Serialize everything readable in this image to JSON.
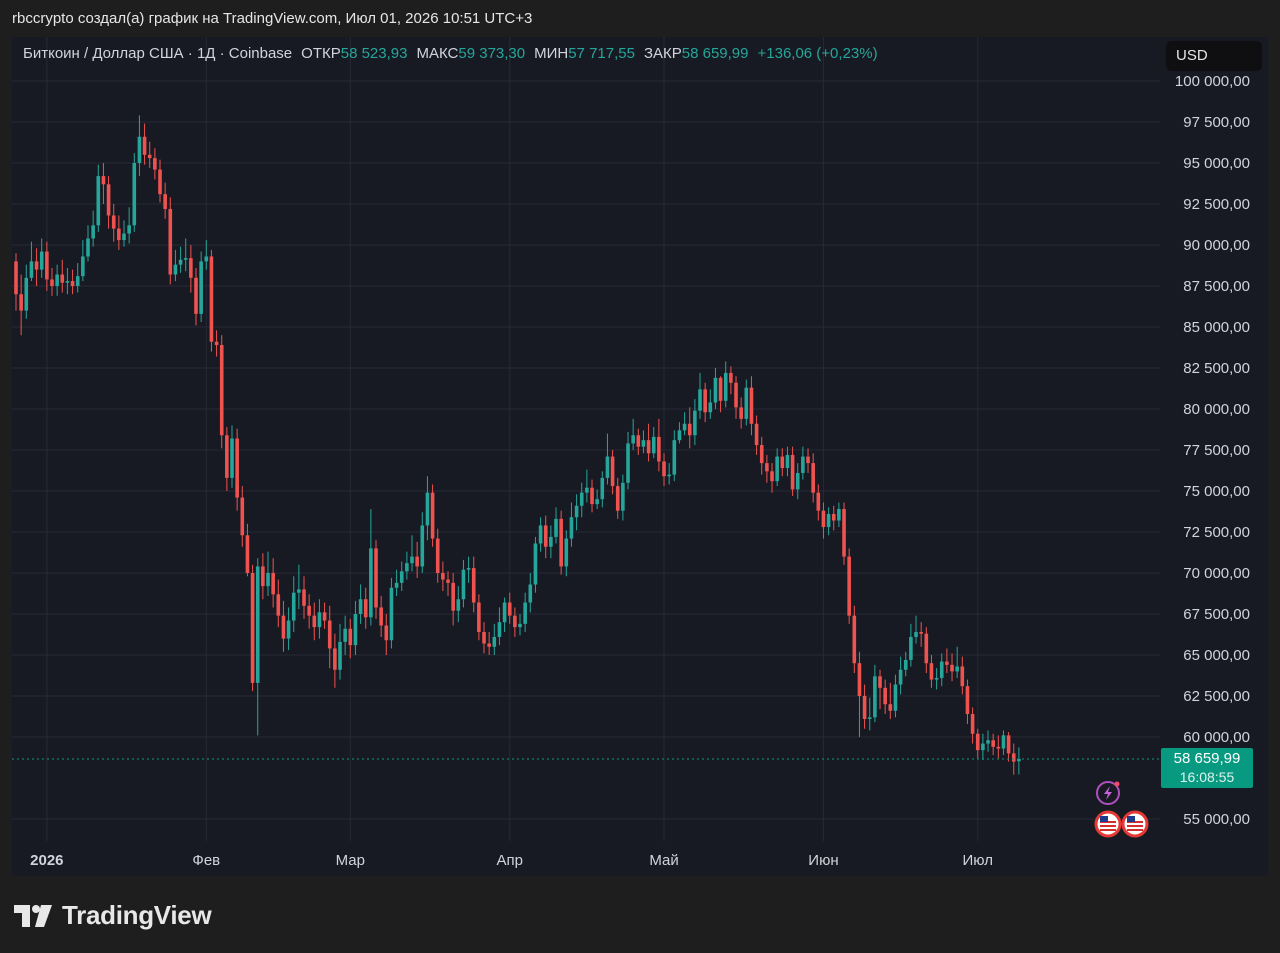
{
  "caption": "rbccrypto создал(а) график на TradingView.com, Июл 01, 2026 10:51 UTC+3",
  "brand": "TradingView",
  "legend": {
    "symbol": "Биткоин / Доллар США · 1Д · Coinbase",
    "open_label": "ОТКР",
    "open_value": "58 523,93",
    "high_label": "МАКС",
    "high_value": "59 373,30",
    "low_label": "МИН",
    "low_value": "57 717,55",
    "close_label": "ЗАКР",
    "close_value": "58 659,99",
    "change": "+136,06 (+0,23%)"
  },
  "currency": "USD",
  "last_price": {
    "value": "58 659,99",
    "countdown": "16:08:55"
  },
  "colors": {
    "up": "#26a69a",
    "down": "#ef5350",
    "background": "#181a23",
    "grid": "#262a36",
    "last_price": "#089981"
  },
  "icons": [
    "lightning-icon",
    "us-flag-icon",
    "us-flag-icon"
  ],
  "chart_data": {
    "type": "candlestick",
    "x_ticks": [
      "2026",
      "Фев",
      "Мар",
      "Апр",
      "Май",
      "Июн",
      "Июл"
    ],
    "y_ticks": [
      "100 000,00",
      "97 500,00",
      "95 000,00",
      "92 500,00",
      "90 000,00",
      "87 500,00",
      "85 000,00",
      "82 500,00",
      "80 000,00",
      "77 500,00",
      "75 000,00",
      "72 500,00",
      "70 000,00",
      "67 500,00",
      "65 000,00",
      "62 500,00",
      "60 000,00",
      "55 000,00"
    ],
    "ylim": [
      52000,
      101000
    ],
    "candles": [
      [
        89000,
        87000,
        89500,
        86000
      ],
      [
        87000,
        86000,
        88200,
        84500
      ],
      [
        86000,
        88000,
        88800,
        85500
      ],
      [
        88000,
        89000,
        90200,
        87800
      ],
      [
        89000,
        88500,
        89800,
        87500
      ],
      [
        88500,
        89600,
        90400,
        88000
      ],
      [
        89600,
        87900,
        90200,
        87200
      ],
      [
        87900,
        87500,
        88600,
        86900
      ],
      [
        87500,
        88200,
        88800,
        86900
      ],
      [
        88200,
        87700,
        89100,
        87100
      ],
      [
        87700,
        87800,
        88600,
        87000
      ],
      [
        87800,
        87500,
        88500,
        87000
      ],
      [
        87500,
        88100,
        88900,
        87100
      ],
      [
        88100,
        89300,
        90300,
        87800
      ],
      [
        89300,
        90400,
        91200,
        89000
      ],
      [
        90400,
        91200,
        92100,
        89900
      ],
      [
        91200,
        94200,
        94900,
        90800
      ],
      [
        94200,
        93700,
        95000,
        92500
      ],
      [
        93700,
        91800,
        94200,
        91000
      ],
      [
        91800,
        91000,
        92500,
        90200
      ],
      [
        91000,
        90300,
        91800,
        89700
      ],
      [
        90300,
        90700,
        91500,
        89900
      ],
      [
        90700,
        91200,
        92300,
        90100
      ],
      [
        91200,
        95000,
        95600,
        90800
      ],
      [
        95000,
        96600,
        97900,
        94200
      ],
      [
        96600,
        95500,
        97400,
        94900
      ],
      [
        95500,
        95300,
        96300,
        94700
      ],
      [
        95300,
        94600,
        95900,
        94000
      ],
      [
        94600,
        93100,
        95200,
        92600
      ],
      [
        93100,
        92200,
        93800,
        91600
      ],
      [
        92200,
        88200,
        92900,
        87600
      ],
      [
        88200,
        88800,
        89700,
        87800
      ],
      [
        88800,
        89100,
        89900,
        88300
      ],
      [
        89100,
        89200,
        90400,
        88400
      ],
      [
        89200,
        88000,
        90000,
        87100
      ],
      [
        88000,
        85800,
        88600,
        85100
      ],
      [
        85800,
        89000,
        89600,
        85300
      ],
      [
        89000,
        89300,
        90300,
        88500
      ],
      [
        89300,
        84100,
        89700,
        83500
      ],
      [
        84100,
        83900,
        84800,
        83200
      ],
      [
        83900,
        78400,
        84500,
        77600
      ],
      [
        78400,
        75800,
        78900,
        75000
      ],
      [
        75800,
        78200,
        79000,
        75200
      ],
      [
        78200,
        74600,
        78800,
        73800
      ],
      [
        74600,
        72300,
        75300,
        71600
      ],
      [
        72300,
        70000,
        73000,
        69800
      ],
      [
        70000,
        63300,
        70500,
        62800
      ],
      [
        63300,
        70400,
        70900,
        60100
      ],
      [
        70400,
        69200,
        71200,
        68400
      ],
      [
        69200,
        70000,
        71300,
        68600
      ],
      [
        70000,
        68700,
        70900,
        67900
      ],
      [
        68700,
        67400,
        69600,
        66700
      ],
      [
        67400,
        66000,
        68300,
        65200
      ],
      [
        66000,
        67100,
        67900,
        65300
      ],
      [
        67100,
        68800,
        69800,
        66400
      ],
      [
        68800,
        69000,
        70500,
        67800
      ],
      [
        69000,
        68000,
        69800,
        67200
      ],
      [
        68000,
        67400,
        68700,
        66600
      ],
      [
        67400,
        66700,
        68200,
        65900
      ],
      [
        66700,
        67600,
        68400,
        66000
      ],
      [
        67600,
        67100,
        68200,
        66600
      ],
      [
        67100,
        65400,
        68000,
        64200
      ],
      [
        65400,
        64100,
        66300,
        63000
      ],
      [
        64100,
        65800,
        66900,
        63500
      ],
      [
        65800,
        66600,
        67400,
        65000
      ],
      [
        66600,
        65600,
        67200,
        64800
      ],
      [
        65600,
        67500,
        68300,
        65000
      ],
      [
        67500,
        68400,
        69300,
        66900
      ],
      [
        68400,
        67300,
        69100,
        66600
      ],
      [
        67300,
        71500,
        73900,
        66800
      ],
      [
        71500,
        67900,
        72000,
        67200
      ],
      [
        67900,
        66800,
        68600,
        66100
      ],
      [
        66800,
        65900,
        67500,
        65000
      ],
      [
        65900,
        69100,
        69700,
        65400
      ],
      [
        69100,
        69400,
        70200,
        68600
      ],
      [
        69400,
        70100,
        70700,
        68900
      ],
      [
        70100,
        70600,
        71300,
        69600
      ],
      [
        70600,
        71000,
        72300,
        70100
      ],
      [
        71000,
        70400,
        71900,
        69700
      ],
      [
        70400,
        72900,
        73700,
        70000
      ],
      [
        72900,
        74900,
        75900,
        72000
      ],
      [
        74900,
        72100,
        75400,
        71600
      ],
      [
        72100,
        70000,
        72700,
        69400
      ],
      [
        70000,
        69600,
        70700,
        68900
      ],
      [
        69600,
        69400,
        70100,
        68600
      ],
      [
        69400,
        67700,
        70000,
        66800
      ],
      [
        67700,
        68400,
        69200,
        67000
      ],
      [
        68400,
        70200,
        70800,
        67900
      ],
      [
        70200,
        70300,
        71000,
        69400
      ],
      [
        70300,
        68200,
        71000,
        67600
      ],
      [
        68200,
        66400,
        68700,
        65900
      ],
      [
        66400,
        65700,
        67000,
        65100
      ],
      [
        65700,
        65500,
        66400,
        65000
      ],
      [
        65500,
        66100,
        66900,
        65000
      ],
      [
        66100,
        67000,
        67900,
        65600
      ],
      [
        67000,
        68200,
        68500,
        66400
      ],
      [
        68200,
        67400,
        68800,
        66900
      ],
      [
        67400,
        66700,
        67900,
        66100
      ],
      [
        66700,
        66900,
        67500,
        66200
      ],
      [
        66900,
        68200,
        68800,
        66400
      ],
      [
        68200,
        69300,
        70000,
        67600
      ],
      [
        69300,
        71800,
        72200,
        68800
      ],
      [
        71800,
        72900,
        73400,
        71300
      ],
      [
        72900,
        71600,
        73500,
        70900
      ],
      [
        71600,
        72200,
        72900,
        70900
      ],
      [
        72200,
        73300,
        74000,
        71800
      ],
      [
        73300,
        70400,
        73800,
        69900
      ],
      [
        70400,
        72100,
        72600,
        69800
      ],
      [
        72100,
        73400,
        74300,
        71600
      ],
      [
        73400,
        74100,
        74800,
        72600
      ],
      [
        74100,
        74900,
        75500,
        73400
      ],
      [
        74900,
        75200,
        76300,
        74300
      ],
      [
        75200,
        74200,
        75700,
        73700
      ],
      [
        74200,
        74500,
        75100,
        73900
      ],
      [
        74500,
        75800,
        76200,
        74000
      ],
      [
        75800,
        77100,
        78500,
        75400
      ],
      [
        77100,
        75300,
        77500,
        74800
      ],
      [
        75300,
        73800,
        75800,
        73300
      ],
      [
        73800,
        75500,
        76000,
        73200
      ],
      [
        75500,
        77900,
        78600,
        75100
      ],
      [
        77900,
        78400,
        79400,
        77500
      ],
      [
        78400,
        77700,
        78800,
        77200
      ],
      [
        77700,
        78100,
        78700,
        77300
      ],
      [
        78100,
        77300,
        79100,
        76800
      ],
      [
        77300,
        78300,
        78900,
        77000
      ],
      [
        78300,
        76800,
        79400,
        76200
      ],
      [
        76800,
        75900,
        77300,
        75300
      ],
      [
        75900,
        76000,
        76700,
        75400
      ],
      [
        76000,
        78100,
        78700,
        75600
      ],
      [
        78100,
        78700,
        79200,
        77900
      ],
      [
        78700,
        79100,
        79800,
        78400
      ],
      [
        79100,
        78400,
        80100,
        77600
      ],
      [
        78400,
        79900,
        80600,
        77800
      ],
      [
        79900,
        81200,
        82200,
        79400
      ],
      [
        81200,
        79800,
        81600,
        79200
      ],
      [
        79800,
        80400,
        81200,
        79400
      ],
      [
        80400,
        81900,
        82500,
        80000
      ],
      [
        81900,
        80500,
        82000,
        79800
      ],
      [
        80500,
        82200,
        82900,
        80100
      ],
      [
        82200,
        81600,
        82600,
        80900
      ],
      [
        81600,
        80100,
        82000,
        79400
      ],
      [
        80100,
        79400,
        80700,
        78800
      ],
      [
        79400,
        81300,
        81800,
        79000
      ],
      [
        81300,
        79100,
        82000,
        78400
      ],
      [
        79100,
        77800,
        79600,
        77200
      ],
      [
        77800,
        76700,
        78300,
        76000
      ],
      [
        76700,
        76200,
        77200,
        75500
      ],
      [
        76200,
        75600,
        76700,
        74900
      ],
      [
        75600,
        77100,
        77600,
        75300
      ],
      [
        77100,
        76400,
        77600,
        75900
      ],
      [
        76400,
        77200,
        77700,
        75900
      ],
      [
        77200,
        75100,
        77700,
        74700
      ],
      [
        75100,
        76100,
        76700,
        74500
      ],
      [
        76100,
        77100,
        77700,
        75700
      ],
      [
        77100,
        76700,
        77600,
        76100
      ],
      [
        76700,
        74900,
        77300,
        74300
      ],
      [
        74900,
        73800,
        75400,
        73200
      ],
      [
        73800,
        72800,
        74300,
        72100
      ],
      [
        72800,
        73600,
        74000,
        72300
      ],
      [
        73600,
        73200,
        74100,
        72600
      ],
      [
        73200,
        73900,
        74300,
        72800
      ],
      [
        73900,
        71000,
        74300,
        70500
      ],
      [
        71000,
        67400,
        71500,
        66900
      ],
      [
        67400,
        64500,
        68000,
        63900
      ],
      [
        64500,
        62500,
        65200,
        60000
      ],
      [
        62500,
        61100,
        63200,
        60500
      ],
      [
        61100,
        61200,
        62400,
        60400
      ],
      [
        61200,
        63700,
        64400,
        60900
      ],
      [
        63700,
        63000,
        64100,
        61700
      ],
      [
        63000,
        62000,
        63500,
        61400
      ],
      [
        62000,
        61600,
        63300,
        61100
      ],
      [
        61600,
        63200,
        63800,
        61200
      ],
      [
        63200,
        64100,
        64900,
        62600
      ],
      [
        64100,
        64700,
        65200,
        63700
      ],
      [
        64700,
        66100,
        66900,
        64300
      ],
      [
        66100,
        66400,
        67400,
        65700
      ],
      [
        66400,
        66300,
        67000,
        65500
      ],
      [
        66300,
        64500,
        66700,
        63900
      ],
      [
        64500,
        63500,
        65000,
        63000
      ],
      [
        63500,
        63600,
        64200,
        62900
      ],
      [
        63600,
        64600,
        65100,
        63100
      ],
      [
        64600,
        64400,
        65400,
        63900
      ],
      [
        64400,
        64000,
        65100,
        63400
      ],
      [
        64000,
        64300,
        65500,
        63600
      ],
      [
        64300,
        63100,
        64900,
        62600
      ],
      [
        63100,
        61400,
        63500,
        60800
      ],
      [
        61400,
        60200,
        61800,
        59600
      ],
      [
        60200,
        59200,
        60500,
        58700
      ],
      [
        59200,
        59600,
        60200,
        58600
      ],
      [
        59600,
        59800,
        60400,
        59100
      ],
      [
        59800,
        59400,
        60200,
        58900
      ],
      [
        59400,
        59300,
        60100,
        58700
      ],
      [
        59300,
        60100,
        60400,
        58900
      ],
      [
        60100,
        59000,
        60300,
        58500
      ],
      [
        59000,
        58500,
        59600,
        57700
      ],
      [
        58524,
        58660,
        59373,
        57718
      ]
    ]
  }
}
